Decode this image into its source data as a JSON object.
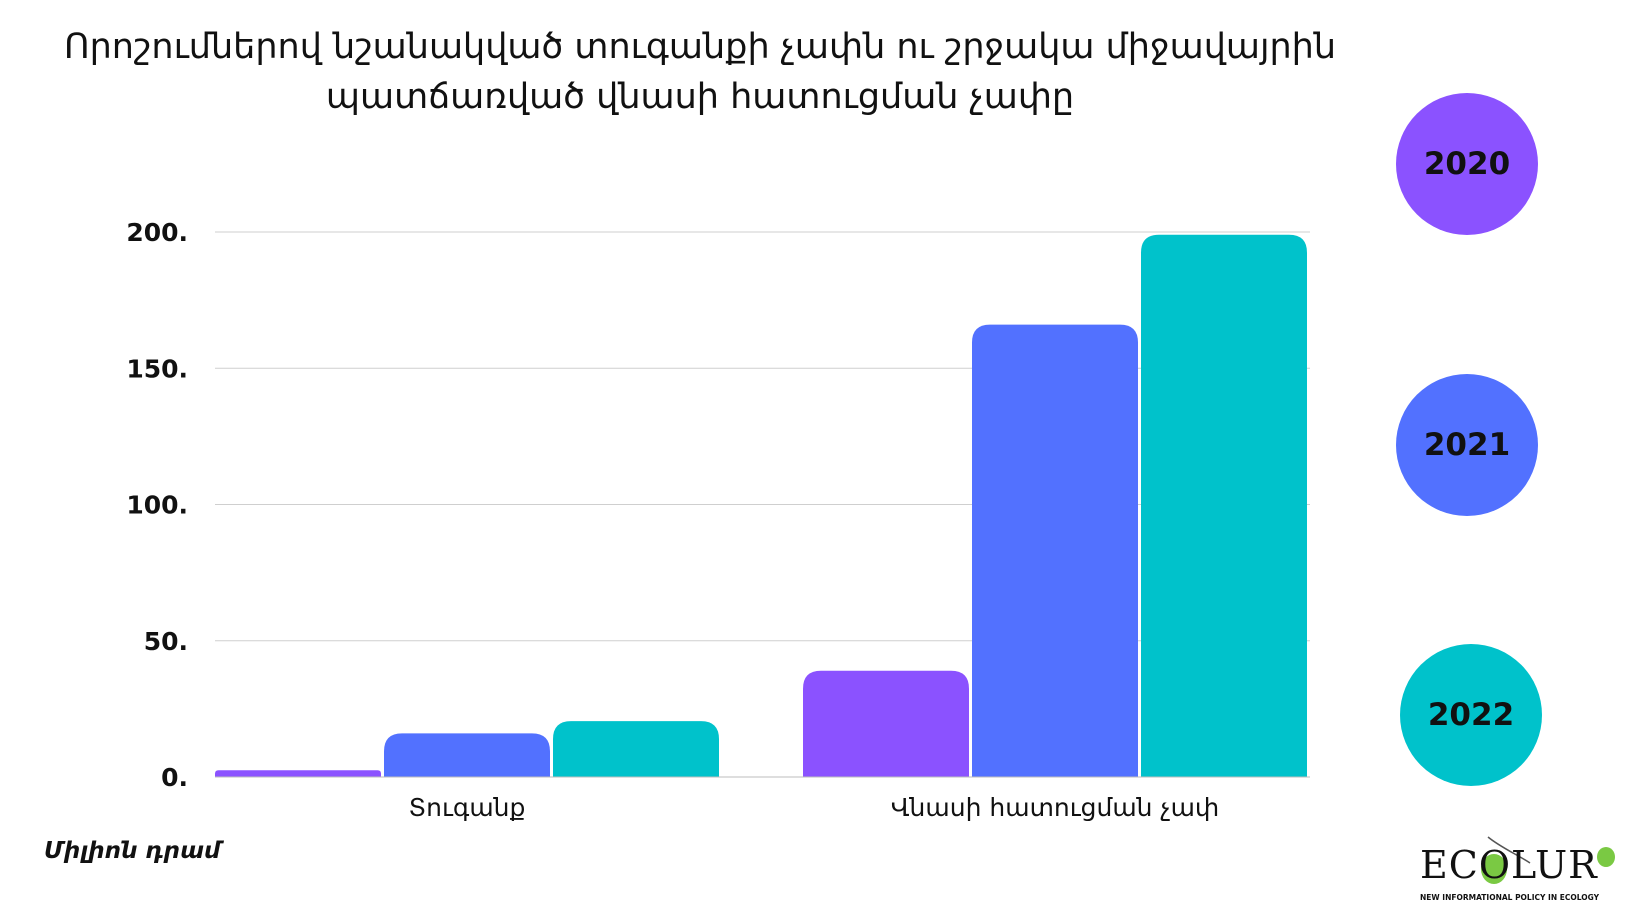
{
  "title": {
    "line1": "Որոշումներով նշանակված տուգանքի չափն ու  շրջակա միջավայրին",
    "line2": "պատճառված վնասի հատուցման չափը"
  },
  "unit_label": "Միլիոն դրամ",
  "legend": [
    {
      "label": "2020",
      "color": "#8b52ff"
    },
    {
      "label": "2021",
      "color": "#5271ff"
    },
    {
      "label": "2022",
      "color": "#00c2cb"
    }
  ],
  "logo": {
    "text": "ECOLUR",
    "tagline": "NEW INFORMATIONAL POLICY IN ECOLOGY"
  },
  "chart_data": {
    "type": "bar",
    "title": "Որոշումներով նշանակված տուգանքի չափն ու  շրջակա միջավայրին պատճառված վնասի հատուցման չափը",
    "xlabel": "",
    "ylabel": "",
    "unit": "Միլիոն դրամ",
    "categories": [
      "Տուգանք",
      "Վնասի հատուցման չափ"
    ],
    "series": [
      {
        "name": "2020",
        "color": "#8b52ff",
        "values": [
          2.5,
          39
        ]
      },
      {
        "name": "2021",
        "color": "#5271ff",
        "values": [
          16,
          166
        ]
      },
      {
        "name": "2022",
        "color": "#00c2cb",
        "values": [
          20.5,
          199
        ]
      }
    ],
    "ylim": [
      0,
      200
    ],
    "yticks": [
      {
        "value": 0,
        "label": "0."
      },
      {
        "value": 50,
        "label": "50."
      },
      {
        "value": 100,
        "label": "100."
      },
      {
        "value": 150,
        "label": "150."
      },
      {
        "value": 200,
        "label": "200."
      }
    ],
    "grid": true,
    "legend_position": "right"
  }
}
